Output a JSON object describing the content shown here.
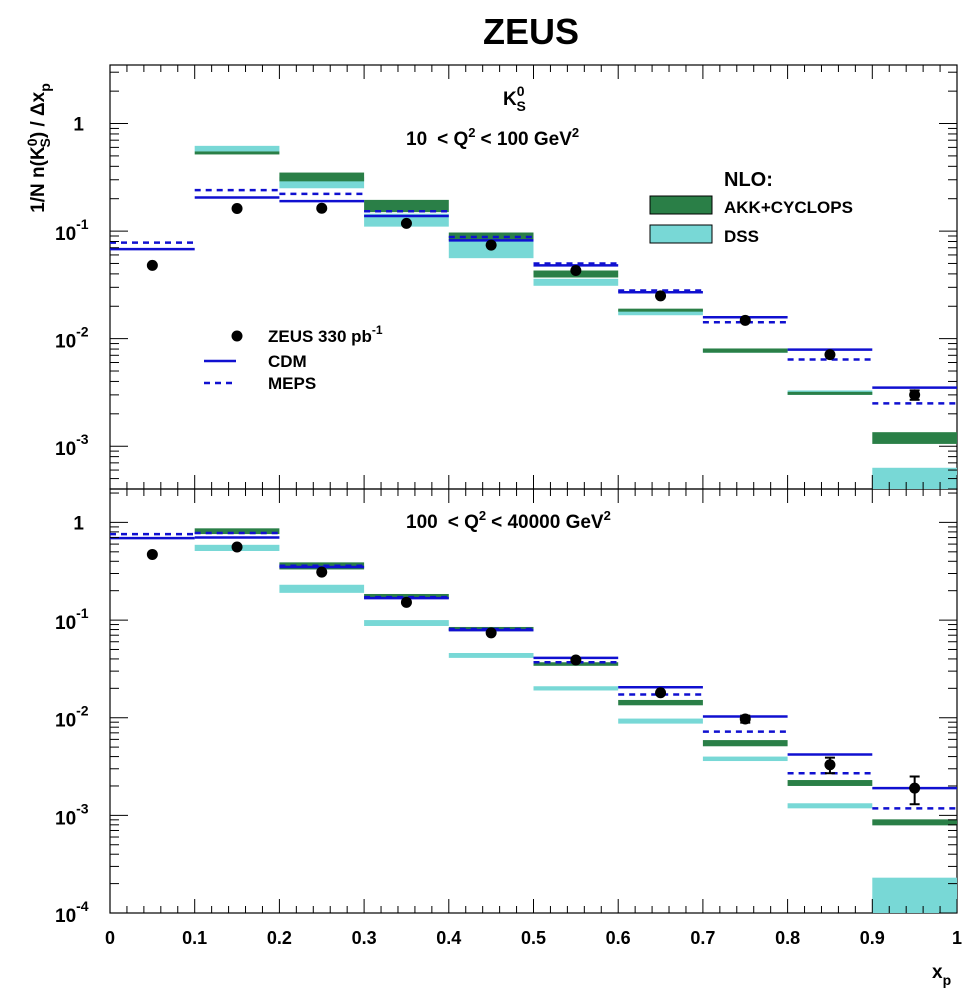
{
  "figure": {
    "title": "ZEUS",
    "ylabel": "1/N n(K⁰S) / Δxp",
    "ylabel_parts": [
      "1/N n(K",
      "0",
      "S",
      ") / Δx",
      "p"
    ],
    "xlabel_main": "x",
    "xlabel_sub": "p",
    "x_ticks": [
      "0",
      "0.1",
      "0.2",
      "0.3",
      "0.4",
      "0.5",
      "0.6",
      "0.7",
      "0.8",
      "0.9",
      "1"
    ],
    "legend_nlo": {
      "heading": "NLO:",
      "items": [
        {
          "label": "AKK+CYCLOPS",
          "color": "#2a7f47"
        },
        {
          "label": "DSS",
          "color": "#78d8d6"
        }
      ]
    },
    "legend_mc": {
      "data_label": "ZEUS 330 pb",
      "data_label_sup": "-1",
      "cdm_label": "CDM",
      "meps_label": "MEPS",
      "line_color": "#1010d0"
    },
    "top_panel_text": {
      "particle": "K",
      "particle_sup": "0",
      "particle_sub": "S",
      "q2_prefix": "10",
      "q2_mid": "< Q",
      "q2_sup": "2",
      "q2_rest": "<  100 GeV",
      "q2_unit_sup": "2"
    },
    "bottom_panel_text": {
      "q2_prefix": "100",
      "q2_mid": "< Q",
      "q2_sup": "2",
      "q2_rest": "<  40000 GeV",
      "q2_unit_sup": "2"
    }
  },
  "chart_data": [
    {
      "type": "bar",
      "panel": "top",
      "title": "10 < Q^2 < 100 GeV^2",
      "xlabel": "x_p",
      "ylabel": "1/N n(K0S) / Δx_p",
      "log_y": true,
      "xlim": [
        0,
        1
      ],
      "ylim": [
        0.0004,
        3.5
      ],
      "y_ticks": [
        {
          "base": "1",
          "exp": "",
          "value": 1
        },
        {
          "base": "10",
          "exp": "-1",
          "value": 0.1
        },
        {
          "base": "10",
          "exp": "-2",
          "value": 0.01
        },
        {
          "base": "10",
          "exp": "-3",
          "value": 0.001
        }
      ],
      "bins": [
        [
          0,
          0.1
        ],
        [
          0.1,
          0.2
        ],
        [
          0.2,
          0.3
        ],
        [
          0.3,
          0.4
        ],
        [
          0.4,
          0.5
        ],
        [
          0.5,
          0.6
        ],
        [
          0.6,
          0.7
        ],
        [
          0.7,
          0.8
        ],
        [
          0.8,
          0.9
        ],
        [
          0.9,
          1.0
        ]
      ],
      "series": [
        {
          "name": "ZEUS 330 pb-1",
          "kind": "points",
          "x": [
            0.05,
            0.15,
            0.25,
            0.35,
            0.45,
            0.55,
            0.65,
            0.75,
            0.85,
            0.95
          ],
          "values": [
            0.048,
            0.162,
            0.163,
            0.118,
            0.074,
            0.043,
            0.025,
            0.0148,
            0.0071,
            0.003
          ],
          "err": [
            0,
            0,
            0,
            0,
            0,
            0,
            0,
            0,
            0,
            0.0003
          ]
        },
        {
          "name": "CDM",
          "kind": "line",
          "values": [
            0.068,
            0.205,
            0.19,
            0.138,
            0.082,
            0.048,
            0.027,
            0.0158,
            0.0079,
            0.0035
          ]
        },
        {
          "name": "MEPS",
          "kind": "dashed",
          "values": [
            0.078,
            0.24,
            0.222,
            0.153,
            0.088,
            0.05,
            0.028,
            0.0142,
            0.0064,
            0.0025
          ]
        },
        {
          "name": "AKK+CYCLOPS",
          "kind": "band",
          "low": [
            null,
            0.52,
            0.29,
            0.15,
            0.082,
            0.037,
            0.018,
            0.0074,
            0.0031,
            0.00105
          ],
          "high": [
            null,
            0.55,
            0.35,
            0.195,
            0.097,
            0.043,
            0.019,
            0.0081,
            0.0032,
            0.00135
          ]
        },
        {
          "name": "DSS",
          "kind": "band",
          "low": [
            null,
            0.55,
            0.25,
            0.11,
            0.056,
            0.031,
            0.0165,
            0.0074,
            0.003,
            0.0004
          ],
          "high": [
            null,
            0.62,
            0.32,
            0.145,
            0.09,
            0.036,
            0.0185,
            0.0081,
            0.0033,
            0.00063
          ]
        }
      ]
    },
    {
      "type": "bar",
      "panel": "bottom",
      "title": "100 < Q^2 < 40000 GeV^2",
      "xlabel": "x_p",
      "ylabel": "1/N n(K0S) / Δx_p",
      "log_y": true,
      "xlim": [
        0,
        1
      ],
      "ylim": [
        0.0001,
        2.2
      ],
      "y_ticks": [
        {
          "base": "1",
          "exp": "",
          "value": 1
        },
        {
          "base": "10",
          "exp": "-1",
          "value": 0.1
        },
        {
          "base": "10",
          "exp": "-2",
          "value": 0.01
        },
        {
          "base": "10",
          "exp": "-3",
          "value": 0.001
        },
        {
          "base": "10",
          "exp": "-4",
          "value": 0.0001
        }
      ],
      "bins": [
        [
          0,
          0.1
        ],
        [
          0.1,
          0.2
        ],
        [
          0.2,
          0.3
        ],
        [
          0.3,
          0.4
        ],
        [
          0.4,
          0.5
        ],
        [
          0.5,
          0.6
        ],
        [
          0.6,
          0.7
        ],
        [
          0.7,
          0.8
        ],
        [
          0.8,
          0.9
        ],
        [
          0.9,
          1.0
        ]
      ],
      "series": [
        {
          "name": "ZEUS 330 pb-1",
          "kind": "points",
          "x": [
            0.05,
            0.15,
            0.25,
            0.35,
            0.45,
            0.55,
            0.65,
            0.75,
            0.85,
            0.95
          ],
          "values": [
            0.47,
            0.56,
            0.31,
            0.152,
            0.074,
            0.039,
            0.018,
            0.0097,
            0.0033,
            0.0019
          ],
          "err": [
            0,
            0,
            0.02,
            0.005,
            0.002,
            0.001,
            0.0007,
            0.0008,
            0.0006,
            0.0006
          ]
        },
        {
          "name": "CDM",
          "kind": "line",
          "values": [
            0.69,
            0.7,
            0.35,
            0.168,
            0.079,
            0.041,
            0.0205,
            0.0103,
            0.0042,
            0.0019
          ]
        },
        {
          "name": "MEPS",
          "kind": "dashed",
          "values": [
            0.76,
            0.78,
            0.36,
            0.172,
            0.081,
            0.037,
            0.0173,
            0.0072,
            0.0027,
            0.00118
          ]
        },
        {
          "name": "AKK+CYCLOPS",
          "kind": "band",
          "low": [
            null,
            0.76,
            0.33,
            0.165,
            0.077,
            0.034,
            0.0134,
            0.0051,
            0.002,
            0.00079
          ],
          "high": [
            null,
            0.87,
            0.39,
            0.185,
            0.085,
            0.037,
            0.0152,
            0.0059,
            0.0023,
            0.00091
          ]
        },
        {
          "name": "DSS",
          "kind": "band",
          "low": [
            null,
            0.51,
            0.19,
            0.087,
            0.041,
            0.019,
            0.0087,
            0.0036,
            0.00118,
            0.0001
          ],
          "high": [
            null,
            0.59,
            0.23,
            0.1,
            0.046,
            0.021,
            0.0098,
            0.004,
            0.00133,
            0.00023
          ]
        }
      ]
    }
  ]
}
